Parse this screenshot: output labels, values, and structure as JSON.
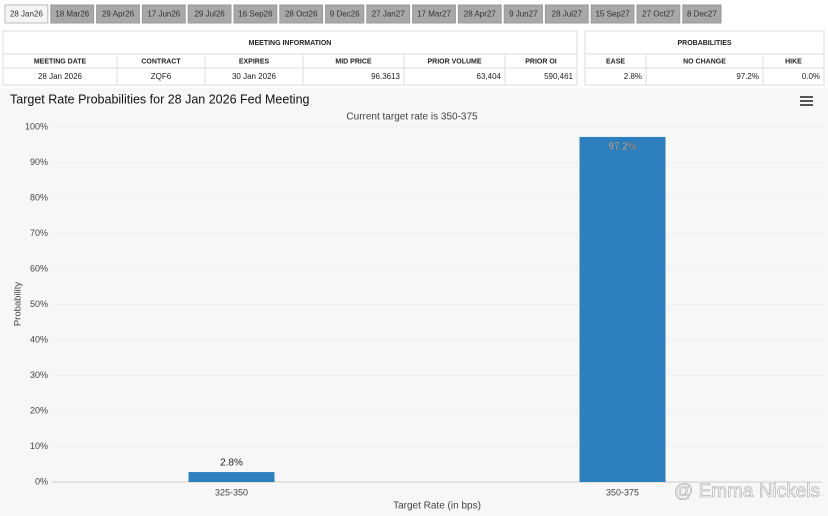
{
  "tabs": [
    "28 Jan26",
    "18 Mar26",
    "29 Apr26",
    "17 Jun26",
    "29 Jul26",
    "16 Sep26",
    "28 Oct26",
    "9 Dec26",
    "27 Jan27",
    "17 Mar27",
    "28 Apr27",
    "9 Jun27",
    "28 Jul27",
    "15 Sep27",
    "27 Oct27",
    "8 Dec27"
  ],
  "meeting_information": {
    "title": "MEETING INFORMATION",
    "columns": [
      "MEETING DATE",
      "CONTRACT",
      "EXPIRES",
      "MID PRICE",
      "PRIOR VOLUME",
      "PRIOR OI"
    ],
    "row": [
      "28 Jan 2026",
      "ZQF6",
      "30 Jan 2026",
      "96.3613",
      "63,404",
      "590,461"
    ]
  },
  "probabilities": {
    "title": "PROBABILITIES",
    "columns": [
      "EASE",
      "NO CHANGE",
      "HIKE"
    ],
    "row": [
      "2.8%",
      "97.2%",
      "0.0%"
    ]
  },
  "chart_data": {
    "type": "bar",
    "title": "Target Rate Probabilities for 28 Jan 2026 Fed Meeting",
    "subtitle": "Current target rate is 350-375",
    "x_label": "Target Rate (in bps)",
    "y_label": "Probability",
    "categories": [
      "325-350",
      "350-375"
    ],
    "values": [
      2.8,
      97.2
    ],
    "value_labels": [
      "2.8%",
      "97.2%"
    ],
    "color": "#2e7fbd",
    "ylim": [
      0,
      100
    ],
    "yticks": [
      {
        "value": 0,
        "label": "0%"
      },
      {
        "value": 10,
        "label": "10%"
      },
      {
        "value": 20,
        "label": "20%"
      },
      {
        "value": 30,
        "label": "30%"
      },
      {
        "value": 40,
        "label": "40%"
      },
      {
        "value": 50,
        "label": "50%"
      },
      {
        "value": 60,
        "label": "60%"
      },
      {
        "value": 70,
        "label": "70%"
      },
      {
        "value": 80,
        "label": "80%"
      },
      {
        "value": 90,
        "label": "90%"
      },
      {
        "value": 100,
        "label": "100%"
      }
    ],
    "grid": true,
    "watermark": "@ Emma Nickels"
  }
}
